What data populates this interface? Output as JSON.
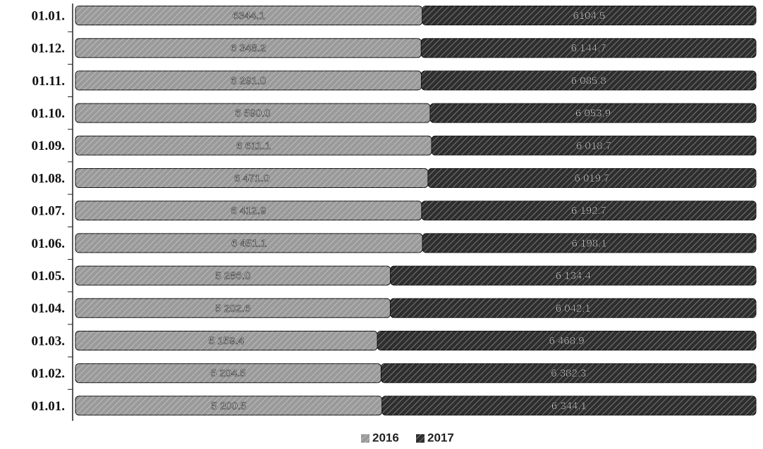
{
  "chart_data": {
    "type": "bar",
    "orientation": "horizontal",
    "stacked": "percent",
    "categories": [
      "01.01.",
      "01.12.",
      "01.11.",
      "01.10.",
      "01.09.",
      "01.08.",
      "01.07.",
      "01.06.",
      "01.05.",
      "01.04.",
      "01.03.",
      "01.02.",
      "01.01."
    ],
    "series": [
      {
        "name": "2016",
        "color": "#9a9a9a",
        "values": [
          6344.1,
          6348.2,
          6291.0,
          6590.0,
          6611.1,
          6471.0,
          6412.9,
          6451.1,
          5286.0,
          5202.6,
          5159.4,
          5204.5,
          5200.5
        ],
        "value_labels": [
          "6344.1",
          "6 348.2",
          "6 291.0",
          "6 590.0",
          "6 611.1",
          "6 471.0",
          "6 412.9",
          "6 451.1",
          "5 286.0",
          "5 202.6",
          "5 159.4",
          "5 204.5",
          "5 200.5"
        ]
      },
      {
        "name": "2017",
        "color": "#2e2e2e",
        "values": [
          6104.5,
          6144.7,
          6085.8,
          6053.9,
          6018.7,
          6019.7,
          6192.7,
          6198.1,
          6134.4,
          6042.1,
          6468.9,
          6382.3,
          6344.1
        ],
        "value_labels": [
          "6104,5",
          "6 144,7",
          "6 085,8",
          "6 053,9",
          "6 018,7",
          "6 019,7",
          "6 192,7",
          "6 198,1",
          "6 134,4",
          "6 042,1",
          "6 468,9",
          "6 382,3",
          "6 344,1"
        ]
      }
    ],
    "legend": "bottom"
  }
}
